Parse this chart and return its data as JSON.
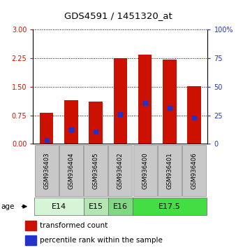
{
  "title": "GDS4591 / 1451320_at",
  "samples": [
    "GSM936403",
    "GSM936404",
    "GSM936405",
    "GSM936402",
    "GSM936400",
    "GSM936401",
    "GSM936406"
  ],
  "transformed_counts": [
    0.82,
    1.15,
    1.12,
    2.25,
    2.35,
    2.22,
    1.52
  ],
  "percentile_ranks": [
    0.1,
    0.38,
    0.32,
    0.78,
    1.08,
    0.95,
    0.68
  ],
  "age_groups": [
    {
      "label": "E14",
      "samples": [
        0,
        1
      ],
      "color": "#d6f5d6"
    },
    {
      "label": "E15",
      "samples": [
        2
      ],
      "color": "#b3e6b3"
    },
    {
      "label": "E16",
      "samples": [
        3
      ],
      "color": "#80d980"
    },
    {
      "label": "E17.5",
      "samples": [
        4,
        5,
        6
      ],
      "color": "#44dd44"
    }
  ],
  "ylim_left": [
    0,
    3
  ],
  "ylim_right": [
    0,
    100
  ],
  "yticks_left": [
    0,
    0.75,
    1.5,
    2.25,
    3
  ],
  "yticks_right": [
    0,
    25,
    50,
    75,
    100
  ],
  "bar_color": "#cc1100",
  "dot_color": "#2233cc",
  "sample_bg_color": "#c8c8c8",
  "legend_items": [
    "transformed count",
    "percentile rank within the sample"
  ]
}
